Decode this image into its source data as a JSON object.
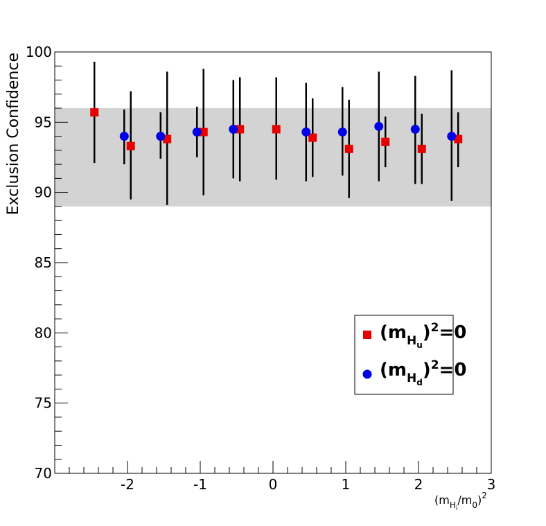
{
  "chart_data": {
    "type": "scatter",
    "xlabel": {
      "main": "(m",
      "sub": "H",
      "subsub": "i",
      "mid": "/m",
      "sub2": "0",
      "end": ")",
      "sup": "2"
    },
    "ylabel": "Exclusion Confidence",
    "xlim": [
      -3,
      3
    ],
    "ylim": [
      70,
      100
    ],
    "x_ticks": [
      "-2",
      "-1",
      "0",
      "1",
      "2",
      "3"
    ],
    "x_tick_values": [
      -2,
      -1,
      0,
      1,
      2,
      3
    ],
    "y_ticks": [
      "70",
      "75",
      "80",
      "85",
      "90",
      "95",
      "100"
    ],
    "y_tick_values": [
      70,
      75,
      80,
      85,
      90,
      95,
      100
    ],
    "band": {
      "low": 89,
      "high": 96,
      "color": "#d3d3d3"
    },
    "series": [
      {
        "name": {
          "main": "(m",
          "sub": "H",
          "subsub": "u",
          "end": ")",
          "sup": "2",
          "tail": "=0"
        },
        "marker": "square",
        "color": "#e60000",
        "points": [
          {
            "x": -2.5,
            "y": 95.7,
            "lo": 92.1,
            "hi": 99.3
          },
          {
            "x": -2.0,
            "y": 93.3,
            "lo": 89.5,
            "hi": 97.2
          },
          {
            "x": -1.5,
            "y": 93.8,
            "lo": 89.1,
            "hi": 98.6
          },
          {
            "x": -1.0,
            "y": 94.3,
            "lo": 89.8,
            "hi": 98.8
          },
          {
            "x": -0.5,
            "y": 94.5,
            "lo": 90.8,
            "hi": 98.2
          },
          {
            "x": 0.0,
            "y": 94.5,
            "lo": 90.9,
            "hi": 98.2
          },
          {
            "x": 0.5,
            "y": 93.9,
            "lo": 91.1,
            "hi": 96.7
          },
          {
            "x": 1.0,
            "y": 93.1,
            "lo": 89.6,
            "hi": 96.6
          },
          {
            "x": 1.5,
            "y": 93.6,
            "lo": 91.8,
            "hi": 95.4
          },
          {
            "x": 2.0,
            "y": 93.1,
            "lo": 90.6,
            "hi": 95.6
          },
          {
            "x": 2.5,
            "y": 93.8,
            "lo": 91.8,
            "hi": 95.7
          }
        ]
      },
      {
        "name": {
          "main": "(m",
          "sub": "H",
          "subsub": "d",
          "end": ")",
          "sup": "2",
          "tail": "=0"
        },
        "marker": "circle",
        "color": "#0000e6",
        "points": [
          {
            "x": -2.0,
            "y": 94.0,
            "lo": 92.0,
            "hi": 95.9
          },
          {
            "x": -1.5,
            "y": 94.0,
            "lo": 92.4,
            "hi": 95.7
          },
          {
            "x": -1.0,
            "y": 94.3,
            "lo": 92.5,
            "hi": 96.1
          },
          {
            "x": -0.5,
            "y": 94.5,
            "lo": 91.0,
            "hi": 98.0
          },
          {
            "x": 0.5,
            "y": 94.3,
            "lo": 90.8,
            "hi": 97.8
          },
          {
            "x": 1.0,
            "y": 94.3,
            "lo": 91.2,
            "hi": 97.5
          },
          {
            "x": 1.5,
            "y": 94.7,
            "lo": 90.8,
            "hi": 98.6
          },
          {
            "x": 2.0,
            "y": 94.5,
            "lo": 90.6,
            "hi": 98.3
          },
          {
            "x": 2.5,
            "y": 94.0,
            "lo": 89.4,
            "hi": 98.7
          }
        ]
      }
    ],
    "legend": {
      "position": "lower-right",
      "border": true
    }
  }
}
